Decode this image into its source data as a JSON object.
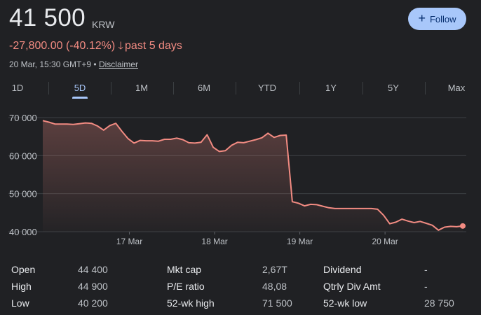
{
  "header": {
    "price": "41 500",
    "currency": "KRW",
    "follow_label": "Follow",
    "change_text": "-27,800.00 (-40.12%)",
    "change_period": "past 5 days",
    "timestamp": "20 Mar, 15:30 GMT+9",
    "separator": "•",
    "disclaimer": "Disclaimer"
  },
  "ranges": [
    {
      "label": "1D",
      "active": false
    },
    {
      "label": "5D",
      "active": true
    },
    {
      "label": "1M",
      "active": false
    },
    {
      "label": "6M",
      "active": false
    },
    {
      "label": "YTD",
      "active": false
    },
    {
      "label": "1Y",
      "active": false
    },
    {
      "label": "5Y",
      "active": false
    },
    {
      "label": "Max",
      "active": false
    }
  ],
  "colors": {
    "line": "#f28b82",
    "accent": "#a8c7fa"
  },
  "icons": {
    "follow": "plus-icon",
    "change": "arrow-down-icon"
  },
  "chart_data": {
    "type": "area",
    "y_ticks": [
      "70 000",
      "60 000",
      "50 000",
      "40 000"
    ],
    "ylim": [
      40000,
      70000
    ],
    "x_ticks": [
      "17 Mar",
      "18 Mar",
      "19 Mar",
      "20 Mar"
    ],
    "series": [
      {
        "values": [
          69200,
          68800,
          68300,
          68300,
          68300,
          68200,
          68400,
          68600,
          68500,
          67800,
          66700,
          67900,
          68500,
          66400,
          64500,
          63300,
          64000,
          63900,
          63900,
          63800,
          64300,
          64300,
          64600,
          64200,
          63400,
          63300,
          63500,
          65500,
          62200,
          61100,
          61300,
          62700,
          63500,
          63400,
          63800,
          64200,
          64700,
          65900,
          64800,
          65300,
          65400,
          47900,
          47500,
          46800,
          47200,
          47100,
          46700,
          46300,
          46100,
          46100,
          46100,
          46100,
          46100,
          46100,
          46100,
          45900,
          44300,
          42100,
          42500,
          43300,
          42800,
          42400,
          42700,
          42200,
          41700,
          40400,
          41200,
          41400,
          41300,
          41500
        ],
        "last_marker": true
      }
    ]
  },
  "stats": [
    {
      "label": "Open",
      "value": "44 400"
    },
    {
      "label": "High",
      "value": "44 900"
    },
    {
      "label": "Low",
      "value": "40 200"
    },
    {
      "label": "Mkt cap",
      "value": "2,67T"
    },
    {
      "label": "P/E ratio",
      "value": "48,08"
    },
    {
      "label": "52-wk high",
      "value": "71 500"
    },
    {
      "label": "Dividend",
      "value": "-"
    },
    {
      "label": "Qtrly Div Amt",
      "value": "-"
    },
    {
      "label": "52-wk low",
      "value": "28 750"
    }
  ]
}
